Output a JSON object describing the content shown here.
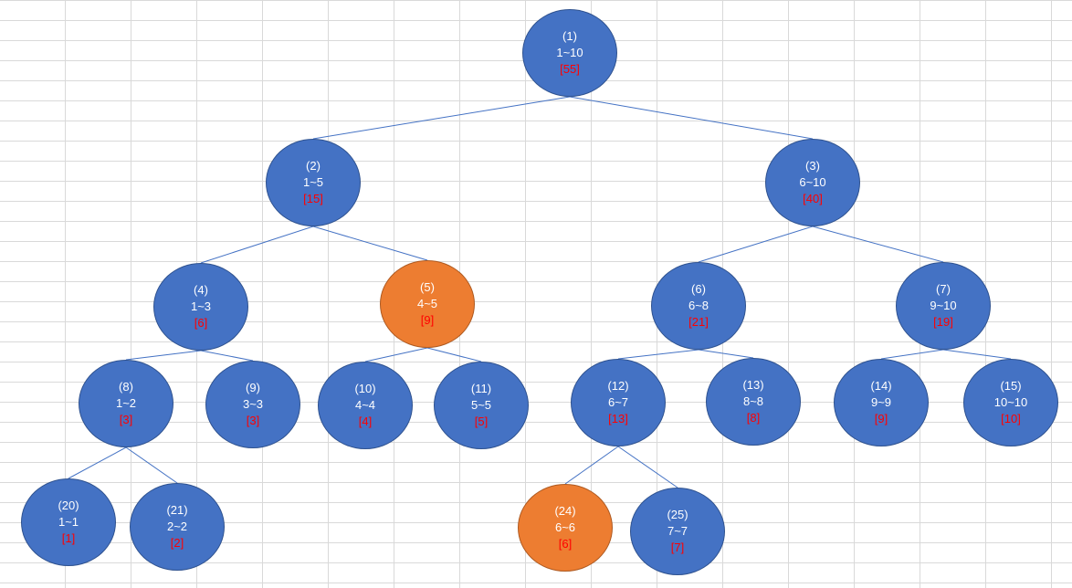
{
  "colors": {
    "node_fill": "#4472c4",
    "node_highlight": "#ed7d31",
    "edge": "#4472c4",
    "sum_text": "#ff0000",
    "label_text": "#ffffff"
  },
  "nodes": [
    {
      "index": "(1)",
      "range": "1~10",
      "sum": "[55]",
      "highlight": false
    },
    {
      "index": "(2)",
      "range": "1~5",
      "sum": "[15]",
      "highlight": false
    },
    {
      "index": "(3)",
      "range": "6~10",
      "sum": "[40]",
      "highlight": false
    },
    {
      "index": "(4)",
      "range": "1~3",
      "sum": "[6]",
      "highlight": false
    },
    {
      "index": "(5)",
      "range": "4~5",
      "sum": "[9]",
      "highlight": true
    },
    {
      "index": "(6)",
      "range": "6~8",
      "sum": "[21]",
      "highlight": false
    },
    {
      "index": "(7)",
      "range": "9~10",
      "sum": "[19]",
      "highlight": false
    },
    {
      "index": "(8)",
      "range": "1~2",
      "sum": "[3]",
      "highlight": false
    },
    {
      "index": "(9)",
      "range": "3~3",
      "sum": "[3]",
      "highlight": false
    },
    {
      "index": "(10)",
      "range": "4~4",
      "sum": "[4]",
      "highlight": false
    },
    {
      "index": "(11)",
      "range": "5~5",
      "sum": "[5]",
      "highlight": false
    },
    {
      "index": "(12)",
      "range": "6~7",
      "sum": "[13]",
      "highlight": false
    },
    {
      "index": "(13)",
      "range": "8~8",
      "sum": "[8]",
      "highlight": false
    },
    {
      "index": "(14)",
      "range": "9~9",
      "sum": "[9]",
      "highlight": false
    },
    {
      "index": "(15)",
      "range": "10~10",
      "sum": "[10]",
      "highlight": false
    },
    {
      "index": "(20)",
      "range": "1~1",
      "sum": "[1]",
      "highlight": false
    },
    {
      "index": "(21)",
      "range": "2~2",
      "sum": "[2]",
      "highlight": false
    },
    {
      "index": "(24)",
      "range": "6~6",
      "sum": "[6]",
      "highlight": true
    },
    {
      "index": "(25)",
      "range": "7~7",
      "sum": "[7]",
      "highlight": false
    }
  ]
}
